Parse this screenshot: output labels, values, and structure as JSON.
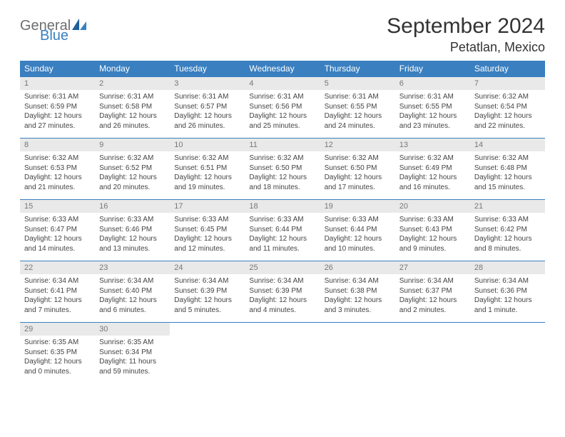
{
  "brand": {
    "general": "General",
    "blue": "Blue"
  },
  "header": {
    "title": "September 2024",
    "location": "Petatlan, Mexico"
  },
  "colors": {
    "accent": "#3a7fc0",
    "headerbg": "#3a7fc0",
    "daynum_bg": "#e9e9e9",
    "text": "#444444"
  },
  "weekdays": [
    "Sunday",
    "Monday",
    "Tuesday",
    "Wednesday",
    "Thursday",
    "Friday",
    "Saturday"
  ],
  "weeks": [
    [
      {
        "n": "1",
        "sr": "Sunrise: 6:31 AM",
        "ss": "Sunset: 6:59 PM",
        "d1": "Daylight: 12 hours",
        "d2": "and 27 minutes."
      },
      {
        "n": "2",
        "sr": "Sunrise: 6:31 AM",
        "ss": "Sunset: 6:58 PM",
        "d1": "Daylight: 12 hours",
        "d2": "and 26 minutes."
      },
      {
        "n": "3",
        "sr": "Sunrise: 6:31 AM",
        "ss": "Sunset: 6:57 PM",
        "d1": "Daylight: 12 hours",
        "d2": "and 26 minutes."
      },
      {
        "n": "4",
        "sr": "Sunrise: 6:31 AM",
        "ss": "Sunset: 6:56 PM",
        "d1": "Daylight: 12 hours",
        "d2": "and 25 minutes."
      },
      {
        "n": "5",
        "sr": "Sunrise: 6:31 AM",
        "ss": "Sunset: 6:55 PM",
        "d1": "Daylight: 12 hours",
        "d2": "and 24 minutes."
      },
      {
        "n": "6",
        "sr": "Sunrise: 6:31 AM",
        "ss": "Sunset: 6:55 PM",
        "d1": "Daylight: 12 hours",
        "d2": "and 23 minutes."
      },
      {
        "n": "7",
        "sr": "Sunrise: 6:32 AM",
        "ss": "Sunset: 6:54 PM",
        "d1": "Daylight: 12 hours",
        "d2": "and 22 minutes."
      }
    ],
    [
      {
        "n": "8",
        "sr": "Sunrise: 6:32 AM",
        "ss": "Sunset: 6:53 PM",
        "d1": "Daylight: 12 hours",
        "d2": "and 21 minutes."
      },
      {
        "n": "9",
        "sr": "Sunrise: 6:32 AM",
        "ss": "Sunset: 6:52 PM",
        "d1": "Daylight: 12 hours",
        "d2": "and 20 minutes."
      },
      {
        "n": "10",
        "sr": "Sunrise: 6:32 AM",
        "ss": "Sunset: 6:51 PM",
        "d1": "Daylight: 12 hours",
        "d2": "and 19 minutes."
      },
      {
        "n": "11",
        "sr": "Sunrise: 6:32 AM",
        "ss": "Sunset: 6:50 PM",
        "d1": "Daylight: 12 hours",
        "d2": "and 18 minutes."
      },
      {
        "n": "12",
        "sr": "Sunrise: 6:32 AM",
        "ss": "Sunset: 6:50 PM",
        "d1": "Daylight: 12 hours",
        "d2": "and 17 minutes."
      },
      {
        "n": "13",
        "sr": "Sunrise: 6:32 AM",
        "ss": "Sunset: 6:49 PM",
        "d1": "Daylight: 12 hours",
        "d2": "and 16 minutes."
      },
      {
        "n": "14",
        "sr": "Sunrise: 6:32 AM",
        "ss": "Sunset: 6:48 PM",
        "d1": "Daylight: 12 hours",
        "d2": "and 15 minutes."
      }
    ],
    [
      {
        "n": "15",
        "sr": "Sunrise: 6:33 AM",
        "ss": "Sunset: 6:47 PM",
        "d1": "Daylight: 12 hours",
        "d2": "and 14 minutes."
      },
      {
        "n": "16",
        "sr": "Sunrise: 6:33 AM",
        "ss": "Sunset: 6:46 PM",
        "d1": "Daylight: 12 hours",
        "d2": "and 13 minutes."
      },
      {
        "n": "17",
        "sr": "Sunrise: 6:33 AM",
        "ss": "Sunset: 6:45 PM",
        "d1": "Daylight: 12 hours",
        "d2": "and 12 minutes."
      },
      {
        "n": "18",
        "sr": "Sunrise: 6:33 AM",
        "ss": "Sunset: 6:44 PM",
        "d1": "Daylight: 12 hours",
        "d2": "and 11 minutes."
      },
      {
        "n": "19",
        "sr": "Sunrise: 6:33 AM",
        "ss": "Sunset: 6:44 PM",
        "d1": "Daylight: 12 hours",
        "d2": "and 10 minutes."
      },
      {
        "n": "20",
        "sr": "Sunrise: 6:33 AM",
        "ss": "Sunset: 6:43 PM",
        "d1": "Daylight: 12 hours",
        "d2": "and 9 minutes."
      },
      {
        "n": "21",
        "sr": "Sunrise: 6:33 AM",
        "ss": "Sunset: 6:42 PM",
        "d1": "Daylight: 12 hours",
        "d2": "and 8 minutes."
      }
    ],
    [
      {
        "n": "22",
        "sr": "Sunrise: 6:34 AM",
        "ss": "Sunset: 6:41 PM",
        "d1": "Daylight: 12 hours",
        "d2": "and 7 minutes."
      },
      {
        "n": "23",
        "sr": "Sunrise: 6:34 AM",
        "ss": "Sunset: 6:40 PM",
        "d1": "Daylight: 12 hours",
        "d2": "and 6 minutes."
      },
      {
        "n": "24",
        "sr": "Sunrise: 6:34 AM",
        "ss": "Sunset: 6:39 PM",
        "d1": "Daylight: 12 hours",
        "d2": "and 5 minutes."
      },
      {
        "n": "25",
        "sr": "Sunrise: 6:34 AM",
        "ss": "Sunset: 6:39 PM",
        "d1": "Daylight: 12 hours",
        "d2": "and 4 minutes."
      },
      {
        "n": "26",
        "sr": "Sunrise: 6:34 AM",
        "ss": "Sunset: 6:38 PM",
        "d1": "Daylight: 12 hours",
        "d2": "and 3 minutes."
      },
      {
        "n": "27",
        "sr": "Sunrise: 6:34 AM",
        "ss": "Sunset: 6:37 PM",
        "d1": "Daylight: 12 hours",
        "d2": "and 2 minutes."
      },
      {
        "n": "28",
        "sr": "Sunrise: 6:34 AM",
        "ss": "Sunset: 6:36 PM",
        "d1": "Daylight: 12 hours",
        "d2": "and 1 minute."
      }
    ],
    [
      {
        "n": "29",
        "sr": "Sunrise: 6:35 AM",
        "ss": "Sunset: 6:35 PM",
        "d1": "Daylight: 12 hours",
        "d2": "and 0 minutes."
      },
      {
        "n": "30",
        "sr": "Sunrise: 6:35 AM",
        "ss": "Sunset: 6:34 PM",
        "d1": "Daylight: 11 hours",
        "d2": "and 59 minutes."
      },
      {
        "empty": true
      },
      {
        "empty": true
      },
      {
        "empty": true
      },
      {
        "empty": true
      },
      {
        "empty": true
      }
    ]
  ]
}
